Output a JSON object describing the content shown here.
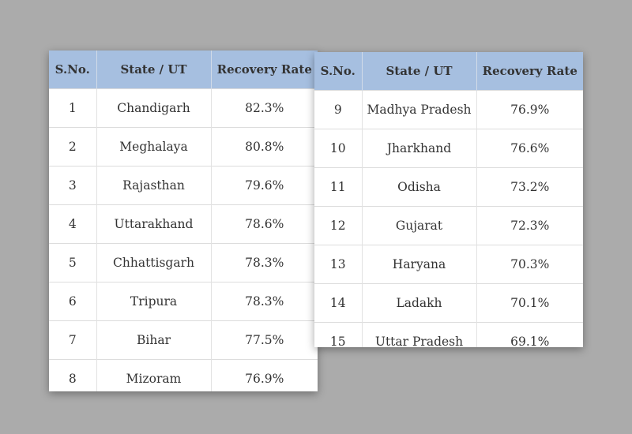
{
  "headers": {
    "sno": "S.No.",
    "state": "State / UT",
    "rate": "Recovery Rate"
  },
  "left_table": [
    {
      "sno": "1",
      "state": "Chandigarh",
      "rate": "82.3%"
    },
    {
      "sno": "2",
      "state": "Meghalaya",
      "rate": "80.8%"
    },
    {
      "sno": "3",
      "state": "Rajasthan",
      "rate": "79.6%"
    },
    {
      "sno": "4",
      "state": "Uttarakhand",
      "rate": "78.6%"
    },
    {
      "sno": "5",
      "state": "Chhattisgarh",
      "rate": "78.3%"
    },
    {
      "sno": "6",
      "state": "Tripura",
      "rate": "78.3%"
    },
    {
      "sno": "7",
      "state": "Bihar",
      "rate": "77.5%"
    },
    {
      "sno": "8",
      "state": "Mizoram",
      "rate": "76.9%"
    }
  ],
  "right_table": [
    {
      "sno": "9",
      "state": "Madhya Pradesh",
      "rate": "76.9%"
    },
    {
      "sno": "10",
      "state": "Jharkhand",
      "rate": "76.6%"
    },
    {
      "sno": "11",
      "state": "Odisha",
      "rate": "73.2%"
    },
    {
      "sno": "12",
      "state": "Gujarat",
      "rate": "72.3%"
    },
    {
      "sno": "13",
      "state": "Haryana",
      "rate": "70.3%"
    },
    {
      "sno": "14",
      "state": "Ladakh",
      "rate": "70.1%"
    },
    {
      "sno": "15",
      "state": "Uttar Pradesh",
      "rate": "69.1%"
    }
  ],
  "colors": {
    "background": "#ababab",
    "header_bg": "#a6bfe0",
    "text": "#333333"
  }
}
